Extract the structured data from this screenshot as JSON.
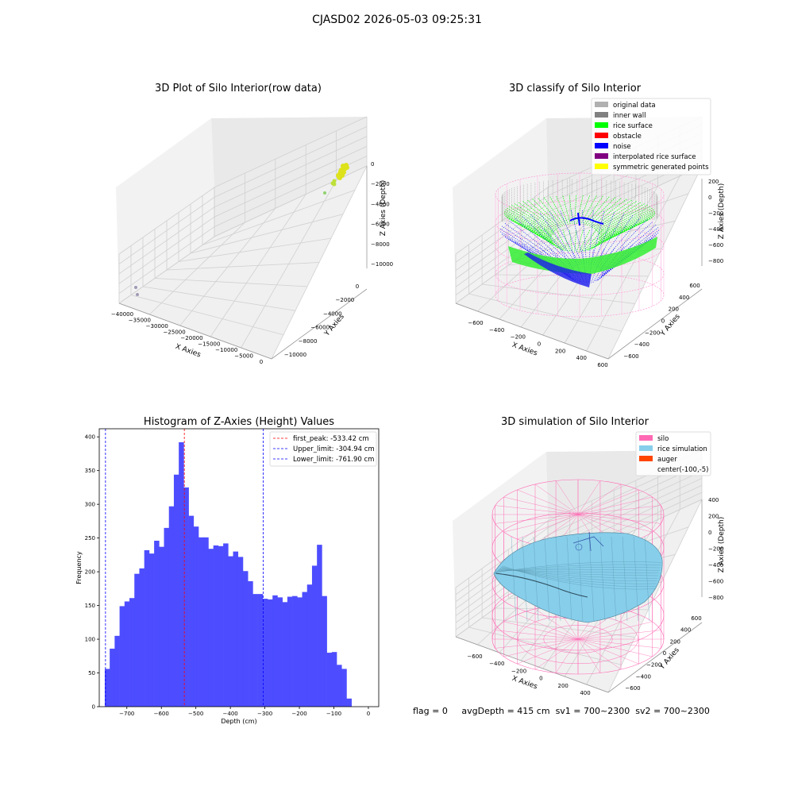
{
  "figure": {
    "suptitle": "CJASD02 2026-05-03 09:25:31",
    "status": {
      "flag": "flag = 0",
      "avg_depth": "avgDepth = 415 cm",
      "sv1": "sv1 = 700~2300",
      "sv2": "sv2 = 700~2300"
    }
  },
  "colors": {
    "histogram_bar": "#4d4dff",
    "first_peak_line": "#ff0000",
    "limit_lines": "#0000ff",
    "silo": "#ff69b4",
    "rice_simulation": "#87ceeb",
    "auger": "#ff4500",
    "original_data": "#b0b0b0",
    "inner_wall": "#808080",
    "rice_surface": "#00ff00",
    "obstacle": "#ff0000",
    "noise": "#0000ff",
    "interpolated_rice_surface": "#800080",
    "symmetric_generated_points": "#ffff00"
  },
  "panels": {
    "raw": {
      "title": "3D Plot of Silo Interior(row data)",
      "xlabel": "X Axies",
      "ylabel": "Y Axies",
      "zlabel": "Z Axies (Depth)",
      "x_ticks": [
        "−40000",
        "−35000",
        "−30000",
        "−25000",
        "−20000",
        "−15000",
        "−10000",
        "−5000",
        "0"
      ],
      "y_ticks": [
        "0",
        "−2000",
        "−4000",
        "−6000",
        "−8000",
        "−10000"
      ],
      "z_ticks": [
        "0",
        "−2000",
        "−4000",
        "−6000",
        "−8000",
        "−10000"
      ]
    },
    "classify": {
      "title": "3D classify of Silo Interior",
      "xlabel": "X Axies",
      "ylabel": "Y Axies",
      "zlabel": "Z Axies (Depth)",
      "x_ticks": [
        "−600",
        "−400",
        "−200",
        "0",
        "200",
        "400",
        "600"
      ],
      "y_ticks": [
        "600",
        "400",
        "200",
        "0",
        "−200",
        "−400",
        "−600"
      ],
      "z_ticks": [
        "200",
        "0",
        "−200",
        "−400",
        "−600",
        "−800"
      ],
      "legend": [
        {
          "label": "original data",
          "color": "#b0b0b0"
        },
        {
          "label": "inner wall",
          "color": "#808080"
        },
        {
          "label": "rice surface",
          "color": "#00ff00"
        },
        {
          "label": "obstacle",
          "color": "#ff0000"
        },
        {
          "label": "noise",
          "color": "#0000ff"
        },
        {
          "label": "interpolated rice surface",
          "color": "#800080"
        },
        {
          "label": "symmetric generated points",
          "color": "#ffff00"
        }
      ]
    },
    "simulation": {
      "title": "3D simulation of Silo Interior",
      "xlabel": "X Axies",
      "ylabel": "Y Axies",
      "zlabel": "Z Axies (Depth)",
      "x_ticks": [
        "−600",
        "−400",
        "−200",
        "0",
        "200",
        "400"
      ],
      "y_ticks": [
        "600",
        "400",
        "200",
        "0",
        "−200",
        "−400",
        "−600"
      ],
      "z_ticks": [
        "400",
        "200",
        "0",
        "−200",
        "−400",
        "−600",
        "−800"
      ],
      "legend": [
        {
          "label": "silo",
          "color": "#ff69b4"
        },
        {
          "label": "rice simulation",
          "color": "#87ceeb"
        },
        {
          "label": "auger",
          "color": "#ff4500"
        },
        {
          "label": "center(-100,-5)",
          "color": ""
        }
      ]
    }
  },
  "chart_data": {
    "type": "bar",
    "title": "Histogram of Z-Axies (Height) Values",
    "xlabel": "Depth (cm)",
    "ylabel": "Frequency",
    "xlim": [
      -780,
      30
    ],
    "ylim": [
      0,
      412
    ],
    "x_ticks": [
      -700,
      -600,
      -500,
      -400,
      -300,
      -200,
      -100,
      0
    ],
    "x_tick_labels": [
      "−700",
      "−600",
      "−500",
      "−400",
      "−300",
      "−200",
      "−100",
      "0"
    ],
    "y_ticks": [
      0,
      50,
      100,
      150,
      200,
      250,
      300,
      350,
      400
    ],
    "bin_width": 14.3,
    "bin_start": -764,
    "counts": [
      56,
      86,
      105,
      149,
      156,
      161,
      197,
      205,
      232,
      227,
      246,
      237,
      265,
      297,
      344,
      392,
      325,
      283,
      267,
      251,
      251,
      234,
      239,
      238,
      242,
      223,
      230,
      222,
      201,
      186,
      167,
      167,
      160,
      159,
      165,
      162,
      155,
      163,
      164,
      162,
      170,
      181,
      209,
      240,
      164,
      80,
      81,
      62,
      56,
      12
    ],
    "vlines": [
      {
        "label": "first_peak: -533.42 cm",
        "x": -533.42,
        "color": "#ff0000"
      },
      {
        "label": "Upper_limit: -304.94 cm",
        "x": -304.94,
        "color": "#0000ff"
      },
      {
        "label": "Lower_limit: -761.90 cm",
        "x": -761.9,
        "color": "#0000ff"
      }
    ]
  }
}
